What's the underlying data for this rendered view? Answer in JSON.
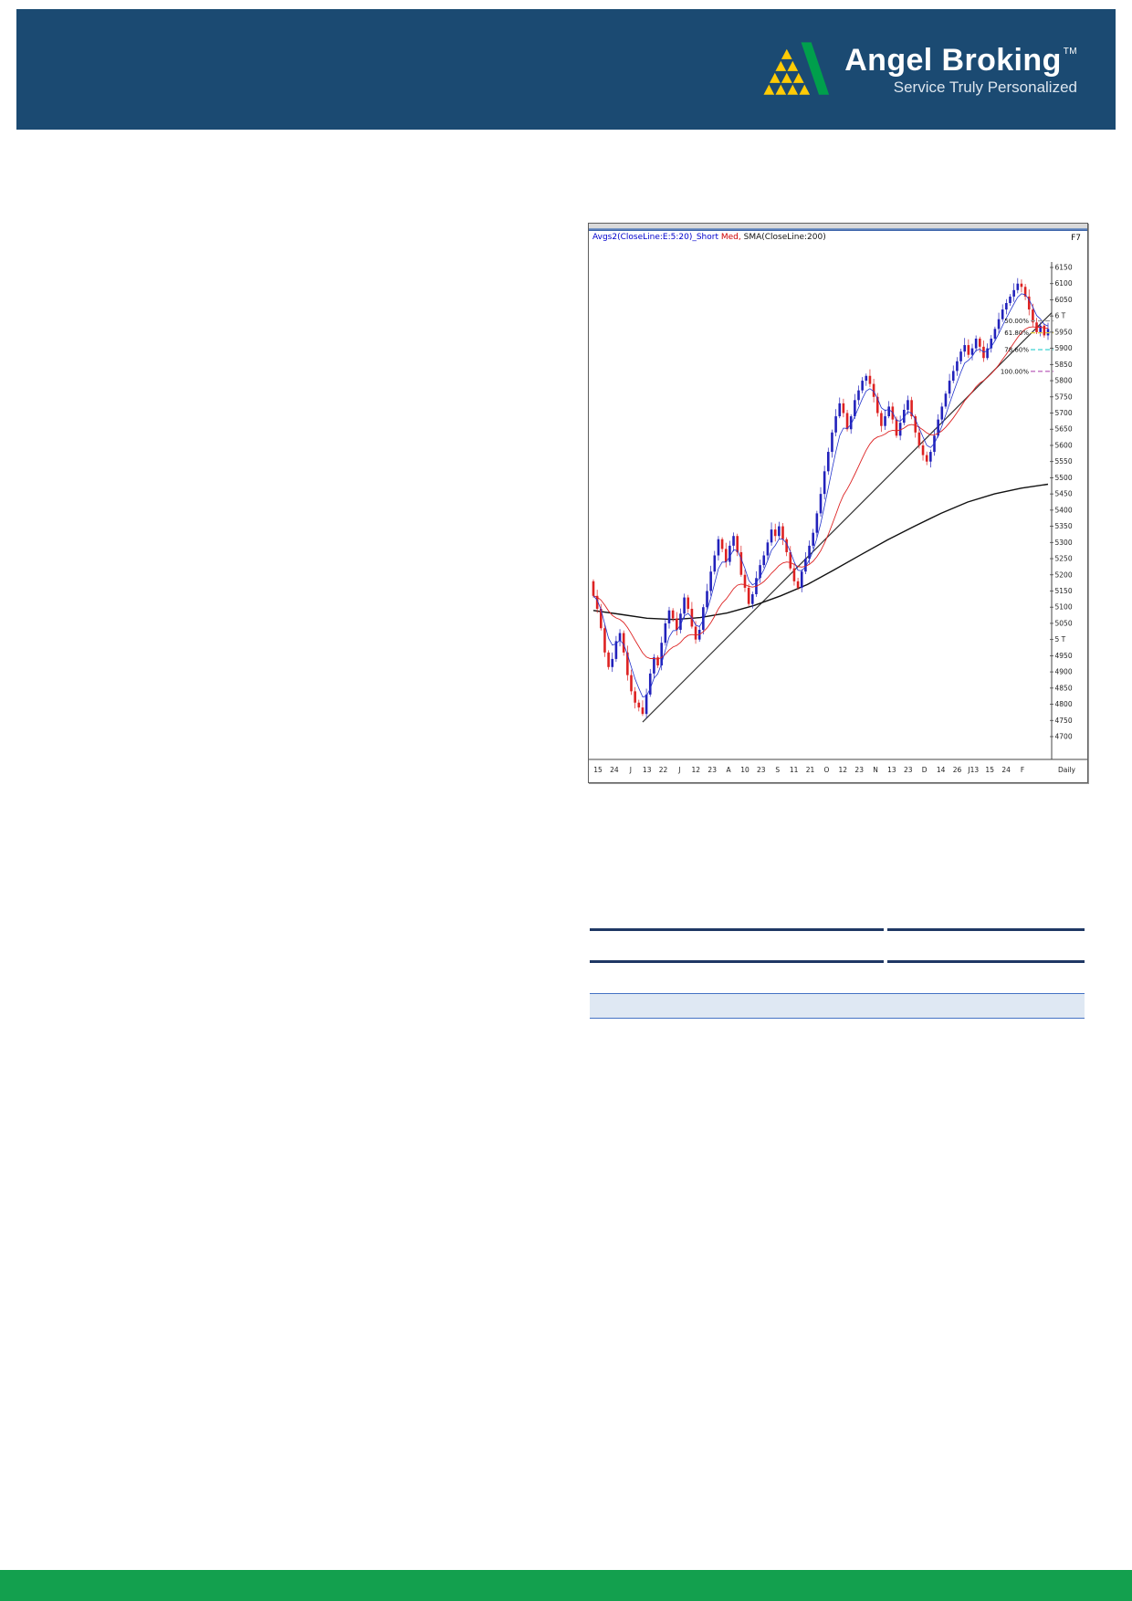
{
  "colors": {
    "header_bg": "#1b4a72",
    "footer_bg": "#13a04e",
    "logo_green": "#009f4c",
    "logo_yellow": "#ffcb05",
    "chart_up": "#2222bb",
    "chart_down": "#dd2222",
    "ema_fast": "#2233cc",
    "ema_slow": "#dd2222",
    "sma200": "#111111",
    "trendline": "#333333",
    "table_rule": "#1f3864",
    "table_band_fill": "#dfe8f3",
    "table_band_border": "#4472c4"
  },
  "header": {
    "brand": "Angel Broking",
    "tm": "TM",
    "tagline": "Service Truly Personalized"
  },
  "chart": {
    "legend": {
      "part1": "Avgs2(CloseLine:E:5:20)_Short ",
      "part2": "Med,",
      "part3": " SMA(CloseLine:200)"
    },
    "corner_label": "F7",
    "timeframe": "Daily"
  },
  "chart_data": {
    "type": "candlestick",
    "title": "Avgs2(CloseLine:E:5:20)_Short Med, SMA(CloseLine:200)",
    "timeframe": "Daily",
    "x_labels": [
      "15",
      "24",
      "J",
      "13",
      "22",
      "J",
      "12",
      "23",
      "A",
      "10",
      "23",
      "S",
      "11",
      "21",
      "O",
      "12",
      "23",
      "N",
      "13",
      "23",
      "D",
      "14",
      "26",
      "J13",
      "15",
      "24",
      "F"
    ],
    "y_axis": {
      "min": 4700,
      "max": 6150,
      "step": 50,
      "special_labels": {
        "6000": "6 T",
        "5000": "5 T"
      }
    },
    "closes": [
      5135,
      5095,
      5035,
      4960,
      4915,
      4940,
      4995,
      5020,
      4960,
      4890,
      4840,
      4805,
      4790,
      4770,
      4830,
      4895,
      4945,
      4920,
      4990,
      5050,
      5090,
      5065,
      5030,
      5080,
      5130,
      5095,
      5040,
      5000,
      5030,
      5100,
      5150,
      5210,
      5260,
      5310,
      5280,
      5240,
      5290,
      5320,
      5270,
      5200,
      5160,
      5110,
      5140,
      5190,
      5230,
      5260,
      5300,
      5340,
      5320,
      5350,
      5310,
      5270,
      5220,
      5180,
      5160,
      5210,
      5250,
      5290,
      5330,
      5390,
      5450,
      5520,
      5580,
      5640,
      5690,
      5730,
      5700,
      5650,
      5690,
      5740,
      5770,
      5800,
      5815,
      5790,
      5750,
      5700,
      5660,
      5690,
      5720,
      5680,
      5630,
      5670,
      5710,
      5740,
      5690,
      5640,
      5600,
      5570,
      5550,
      5580,
      5630,
      5680,
      5720,
      5760,
      5800,
      5830,
      5860,
      5890,
      5910,
      5880,
      5900,
      5930,
      5905,
      5870,
      5900,
      5930,
      5960,
      5990,
      6020,
      6040,
      6060,
      6080,
      6100,
      6090,
      6060,
      6020,
      5980,
      5950,
      5970,
      5940,
      5960
    ],
    "sma200": [
      5090,
      5078,
      5066,
      5062,
      5068,
      5082,
      5105,
      5135,
      5170,
      5215,
      5262,
      5308,
      5350,
      5390,
      5425,
      5450,
      5468,
      5480
    ],
    "overlays": {
      "ema_fast_period": 5,
      "ema_slow_period": 20
    },
    "fib_levels": [
      {
        "label": "50.00%",
        "price": 5985,
        "color": "#999999"
      },
      {
        "label": "61.80%",
        "price": 5948,
        "color": "#e3cf3e"
      },
      {
        "label": "78.60%",
        "price": 5896,
        "color": "#4fd6d6"
      },
      {
        "label": "100.00%",
        "price": 5829,
        "color": "#c06fc0"
      }
    ],
    "trendline": {
      "start_index": 13,
      "start_price": 4745,
      "end_price": 6010
    }
  }
}
